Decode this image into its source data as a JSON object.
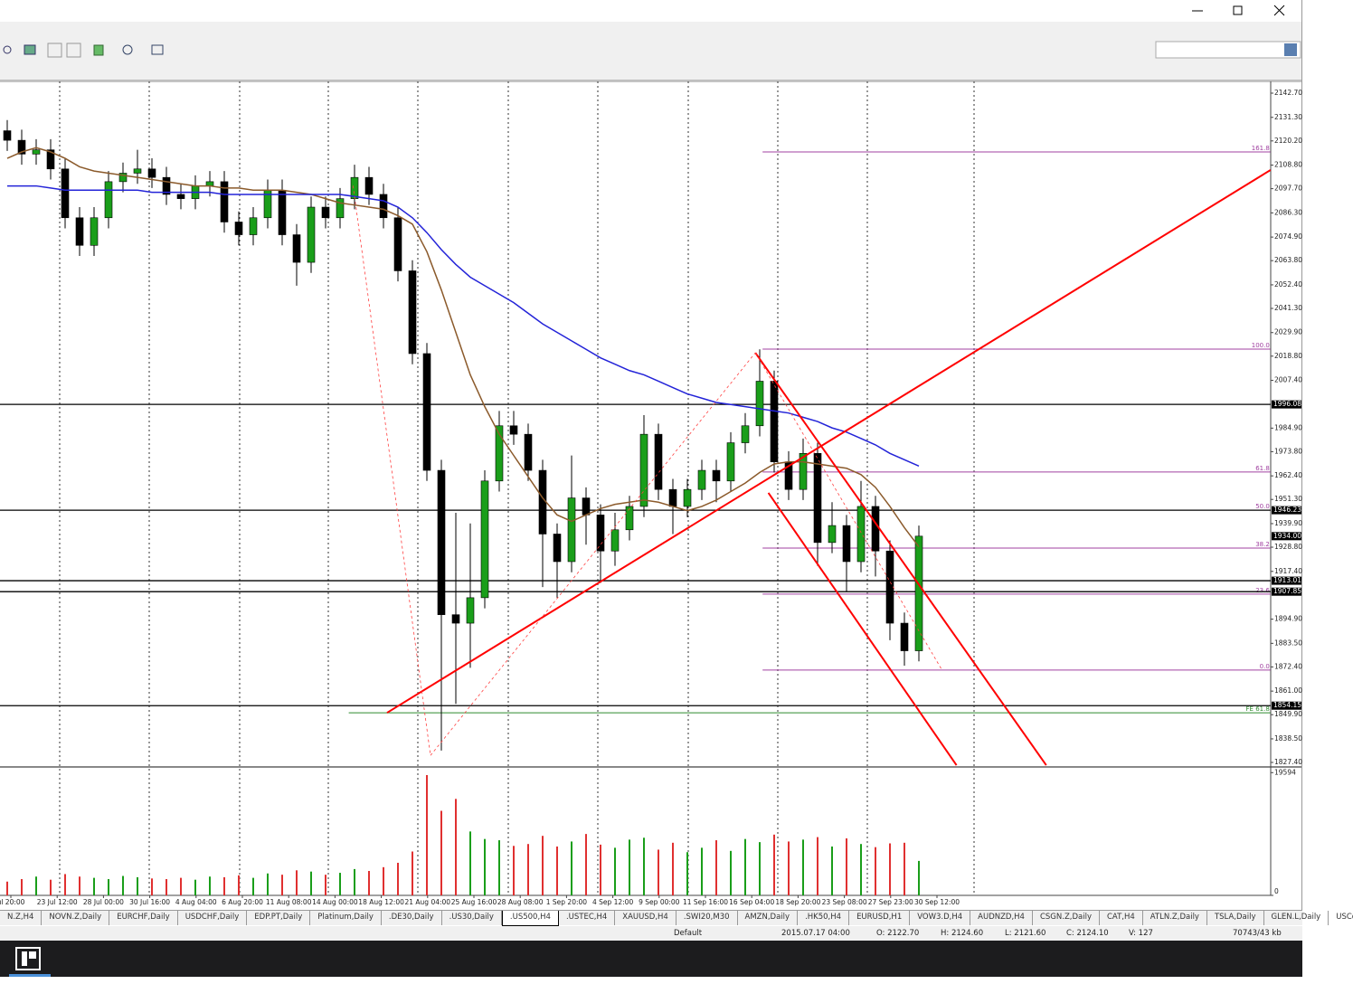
{
  "chart_data": {
    "type": "candlestick",
    "up_color": "#1a9e1a",
    "down_color": "#000000",
    "open": [
      2125,
      2120.5,
      2114,
      2116,
      2107,
      2084,
      2071,
      2084,
      2101,
      2105,
      2107,
      2103,
      2095,
      2093,
      2099,
      2101,
      2082,
      2076,
      2084,
      2097,
      2076,
      2063,
      2089,
      2084,
      2093,
      2103,
      2095,
      2084,
      2059,
      2020,
      1965,
      1897,
      1893,
      1905,
      1960,
      1986,
      1982,
      1965,
      1935,
      1922,
      1952,
      1944,
      1927,
      1937,
      1948,
      1982,
      1956,
      1948,
      1956,
      1965,
      1960,
      1978,
      1986,
      2007,
      1969,
      1956,
      1973,
      1931,
      1939,
      1922,
      1948,
      1927,
      1893,
      1880
    ],
    "high": [
      2130,
      2125.5,
      2121,
      2121,
      2112,
      2089,
      2089,
      2106,
      2110,
      2116,
      2112,
      2108,
      2100,
      2104,
      2106,
      2106,
      2087,
      2089,
      2102,
      2102,
      2081,
      2094,
      2094,
      2098,
      2109,
      2108,
      2100,
      2089,
      2064,
      2025,
      1970,
      1945,
      1940,
      1965,
      1993,
      1993,
      1987,
      1970,
      1940,
      1972,
      1957,
      1949,
      1945,
      1953,
      1991,
      1987,
      1961,
      1961,
      1970,
      1970,
      1983,
      1992,
      2022,
      2012,
      1974,
      1980,
      1978,
      1950,
      1944,
      1960,
      1953,
      1932,
      1898,
      1939
    ],
    "low": [
      2115.5,
      2109,
      2109,
      2102,
      2079,
      2066,
      2066,
      2079,
      2096,
      2100,
      2098,
      2090,
      2088,
      2088,
      2094,
      2077,
      2071,
      2071,
      2079,
      2071,
      2052,
      2058,
      2079,
      2079,
      2088,
      2090,
      2079,
      2054,
      2015,
      1960,
      1833,
      1855,
      1872,
      1900,
      1955,
      1977,
      1960,
      1910,
      1905,
      1917,
      1930,
      1912,
      1920,
      1932,
      1943,
      1951,
      1935,
      1943,
      1951,
      1950,
      1955,
      1973,
      1981,
      1964,
      1951,
      1951,
      1920,
      1926,
      1908,
      1917,
      1915,
      1885,
      1873,
      1875
    ],
    "close": [
      2120.5,
      2114,
      2116,
      2107,
      2084,
      2071,
      2084,
      2101,
      2105,
      2107,
      2103,
      2095,
      2093,
      2099,
      2101,
      2082,
      2076,
      2084,
      2097,
      2076,
      2063,
      2089,
      2084,
      2093,
      2103,
      2095,
      2084,
      2059,
      2020,
      1965,
      1897,
      1893,
      1905,
      1960,
      1986,
      1982,
      1965,
      1935,
      1922,
      1952,
      1944,
      1927,
      1937,
      1948,
      1982,
      1956,
      1948,
      1956,
      1965,
      1960,
      1978,
      1986,
      2007,
      1969,
      1956,
      1973,
      1931,
      1939,
      1922,
      1948,
      1927,
      1893,
      1880,
      1934
    ],
    "moving_averages": [
      {
        "color": "#8b5a2b",
        "values": [
          2112,
          2115,
          2117,
          2115,
          2112,
          2108,
          2106,
          2105,
          2104,
          2103,
          2102,
          2101,
          2100,
          2099,
          2099,
          2098,
          2098,
          2097,
          2097,
          2097,
          2096,
          2095,
          2093,
          2091,
          2090,
          2089,
          2088,
          2085,
          2081,
          2068,
          2050,
          2030,
          2010,
          1995,
          1982,
          1972,
          1962,
          1952,
          1944,
          1941,
          1944,
          1947,
          1949,
          1950,
          1951,
          1950,
          1948,
          1946,
          1948,
          1951,
          1955,
          1959,
          1964,
          1968,
          1969,
          1969,
          1968,
          1967,
          1966,
          1963,
          1957,
          1948,
          1938,
          1929
        ]
      },
      {
        "color": "#2323d8",
        "values": [
          2099,
          2099,
          2099,
          2098,
          2097,
          2097,
          2097,
          2097,
          2097,
          2097,
          2096,
          2096,
          2096,
          2096,
          2096,
          2095,
          2095,
          2095,
          2095,
          2095,
          2095,
          2095,
          2095,
          2095,
          2094,
          2093,
          2092,
          2089,
          2084,
          2077,
          2069,
          2062,
          2056,
          2052,
          2048,
          2044,
          2039,
          2034,
          2030,
          2026,
          2022,
          2018,
          2015,
          2012,
          2010,
          2007,
          2004,
          2001,
          1999,
          1997,
          1996,
          1995,
          1994,
          1993,
          1992,
          1990,
          1988,
          1985,
          1983,
          1980,
          1977,
          1973,
          1970,
          1967
        ]
      }
    ],
    "ylim": [
      1825.27,
      2148.24
    ],
    "yticks": [
      {
        "value": 2142.7,
        "label": "2142.70"
      },
      {
        "value": 2131.3,
        "label": "2131.30"
      },
      {
        "value": 2120.2,
        "label": "2120.20"
      },
      {
        "value": 2108.8,
        "label": "2108.80"
      },
      {
        "value": 2097.7,
        "label": "2097.70"
      },
      {
        "value": 2086.3,
        "label": "2086.30"
      },
      {
        "value": 2074.9,
        "label": "2074.90"
      },
      {
        "value": 2063.8,
        "label": "2063.80"
      },
      {
        "value": 2052.4,
        "label": "2052.40"
      },
      {
        "value": 2041.3,
        "label": "2041.30"
      },
      {
        "value": 2029.9,
        "label": "2029.90"
      },
      {
        "value": 2018.8,
        "label": "2018.80"
      },
      {
        "value": 2007.4,
        "label": "2007.40"
      },
      {
        "value": 1984.9,
        "label": "1984.90"
      },
      {
        "value": 1973.8,
        "label": "1973.80"
      },
      {
        "value": 1962.4,
        "label": "1962.40"
      },
      {
        "value": 1951.3,
        "label": "1951.30"
      },
      {
        "value": 1939.9,
        "label": "1939.90"
      },
      {
        "value": 1928.8,
        "label": "1928.80"
      },
      {
        "value": 1917.4,
        "label": "1917.40"
      },
      {
        "value": 1894.9,
        "label": "1894.90"
      },
      {
        "value": 1883.5,
        "label": "1883.50"
      },
      {
        "value": 1872.4,
        "label": "1872.40"
      },
      {
        "value": 1861,
        "label": "1861.00"
      },
      {
        "value": 1849.9,
        "label": "1849.90"
      },
      {
        "value": 1838.5,
        "label": "1838.50"
      },
      {
        "value": 1827.4,
        "label": "1827.40"
      }
    ],
    "levels": [
      1996.08,
      1946.23,
      1913.01,
      1907.85,
      1854.15
    ],
    "current_price": {
      "value": 1934,
      "label": "1934.00"
    },
    "fibo": {
      "color": "#a040a0",
      "x": [
        52.2,
        87.3
      ],
      "levels": [
        {
          "value": 2115,
          "label": "161.8"
        },
        {
          "value": 2022.1,
          "label": "100.0"
        },
        {
          "value": 1964.2,
          "label": "61.8"
        },
        {
          "value": 1946.3,
          "label": "50.0"
        },
        {
          "value": 1928.4,
          "label": "38.2"
        },
        {
          "value": 1906.7,
          "label": "23.6"
        },
        {
          "value": 1870.9,
          "label": "0.0"
        }
      ]
    },
    "expansion": {
      "color": "#2e8b2e",
      "x": [
        23.6,
        87.3
      ],
      "value": 1850.8,
      "label": "FE 61.8"
    },
    "trendlines": [
      {
        "color": "#ff0000",
        "dashed": false,
        "x": [
          26.25,
          87.3
        ],
        "y": [
          1850.8,
          2106.5
        ]
      },
      {
        "color": "#ff0000",
        "dashed": false,
        "x": [
          51.7,
          71.8
        ],
        "y": [
          2020.4,
          1826.1
        ]
      },
      {
        "color": "#ff0000",
        "dashed": false,
        "x": [
          52.6,
          65.6
        ],
        "y": [
          1954.4,
          1826.1
        ]
      },
      {
        "color": "#ff4040",
        "dashed": true,
        "x": [
          23.9,
          29.25
        ],
        "y": [
          2099.1,
          1830.7
        ]
      },
      {
        "color": "#ff4040",
        "dashed": true,
        "x": [
          29.25,
          51.7
        ],
        "y": [
          1830.7,
          2020.4
        ]
      },
      {
        "color": "#ff4040",
        "dashed": true,
        "x": [
          51.7,
          64.6
        ],
        "y": [
          2020.4,
          1870.9
        ]
      }
    ],
    "time_labels": [
      "ul 20:00",
      "23 Jul 12:00",
      "28 Jul 00:00",
      "30 Jul 16:00",
      "4 Aug 04:00",
      "6 Aug 20:00",
      "11 Aug 08:00",
      "14 Aug 00:00",
      "18 Aug 12:00",
      "21 Aug 04:00",
      "25 Aug 16:00",
      "28 Aug 08:00",
      "1 Sep 20:00",
      "4 Sep 12:00",
      "9 Sep 00:00",
      "11 Sep 16:00",
      "16 Sep 04:00",
      "18 Sep 20:00",
      "23 Sep 08:00",
      "27 Sep 23:00",
      "30 Sep 12:00"
    ],
    "volume": {
      "up_color": "#1a9e1a",
      "down_color": "#e03030",
      "ylim": [
        0,
        20500
      ],
      "yticks": [
        0,
        19594
      ],
      "values": [
        2200,
        2600,
        3000,
        2500,
        3400,
        3000,
        2800,
        2600,
        3100,
        2900,
        2700,
        2600,
        2800,
        2500,
        3000,
        2900,
        3200,
        2800,
        3500,
        3300,
        4000,
        3800,
        3300,
        3600,
        4200,
        3900,
        4500,
        5200,
        7000,
        19200,
        13500,
        15400,
        10200,
        9000,
        8800,
        7900,
        8200,
        9500,
        7800,
        8600,
        9800,
        8100,
        7600,
        8900,
        9200,
        7300,
        8400,
        6900,
        7600,
        8800,
        7100,
        9000,
        8500,
        9700,
        8600,
        8900,
        9300,
        7800,
        9100,
        8200,
        7700,
        8300,
        8400,
        5500
      ]
    }
  },
  "tabs": [
    "N.Z,H4",
    "NOVN.Z,Daily",
    "EURCHF,Daily",
    "USDCHF,Daily",
    "EDP.PT,Daily",
    "Platinum,Daily",
    ".DE30,Daily",
    ".US30,Daily",
    ".US500,H4",
    ".USTEC,H4",
    "XAUUSD,H4",
    ".SWI20,M30",
    "AMZN,Daily",
    ".HK50,H4",
    "EURUSD,H1",
    "VOW3.D,H4",
    "AUDNZD,H4",
    "CSGN.Z,Daily",
    "CAT,H4",
    "ATLN.Z,Daily",
    "TSLA,Daily",
    "GLEN.L,Daily",
    "USCo"
  ],
  "active_tab": 8,
  "status": [
    "Default",
    "2015.07.17 04:00",
    "O: 2122.70",
    "H: 2124.60",
    "L: 2121.60",
    "C: 2124.10",
    "V: 127",
    "70743/43 kb"
  ]
}
